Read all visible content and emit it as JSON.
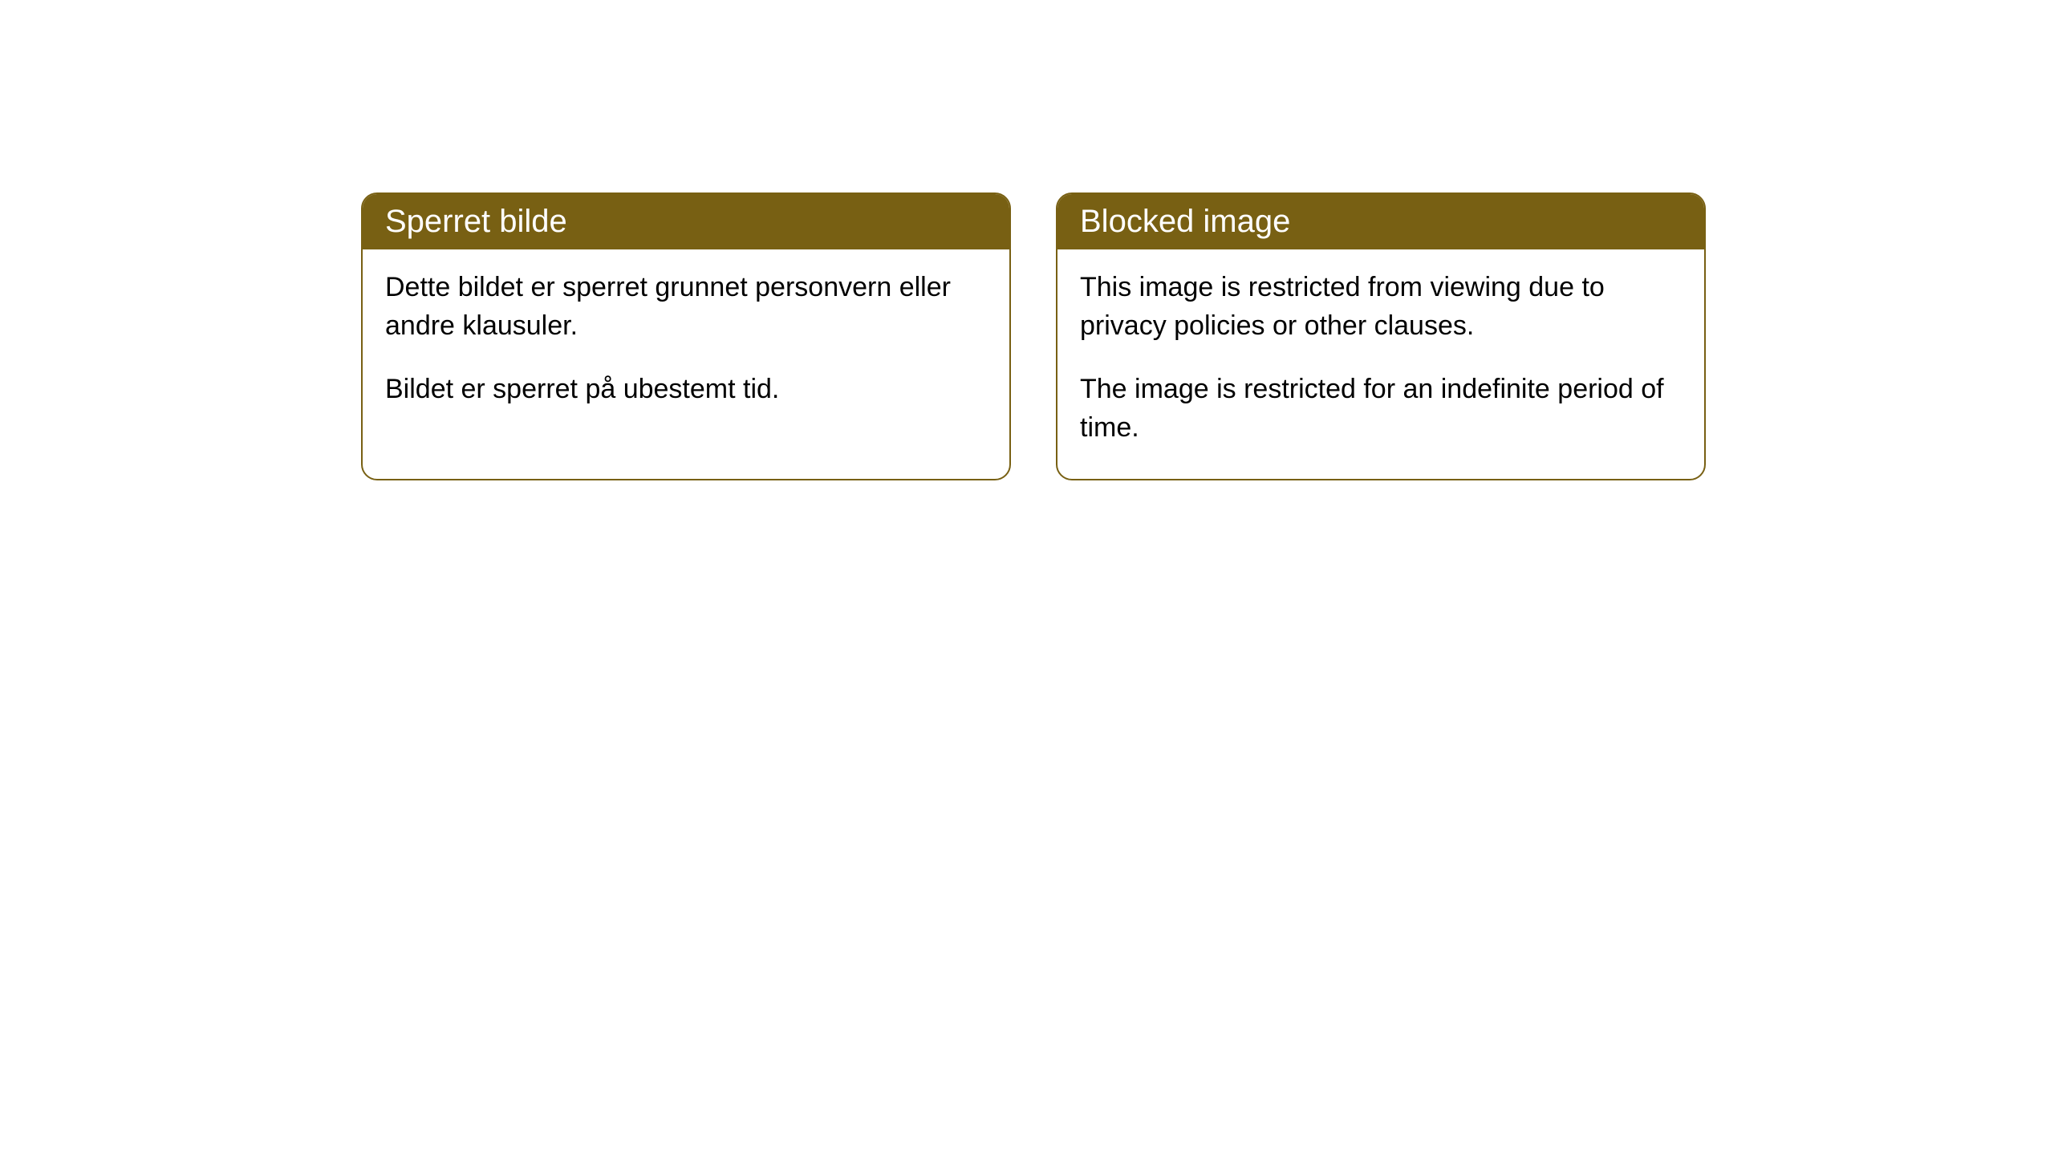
{
  "cards": [
    {
      "title": "Sperret bilde",
      "paragraph1": "Dette bildet er sperret grunnet personvern eller andre klausuler.",
      "paragraph2": "Bildet er sperret på ubestemt tid."
    },
    {
      "title": "Blocked image",
      "paragraph1": "This image is restricted from viewing due to privacy policies or other clauses.",
      "paragraph2": "The image is restricted for an indefinite period of time."
    }
  ],
  "styling": {
    "header_bg_color": "#786013",
    "header_text_color": "#ffffff",
    "border_color": "#786013",
    "body_bg_color": "#ffffff",
    "body_text_color": "#000000",
    "border_radius": 20,
    "header_fontsize": 40,
    "body_fontsize": 34
  }
}
